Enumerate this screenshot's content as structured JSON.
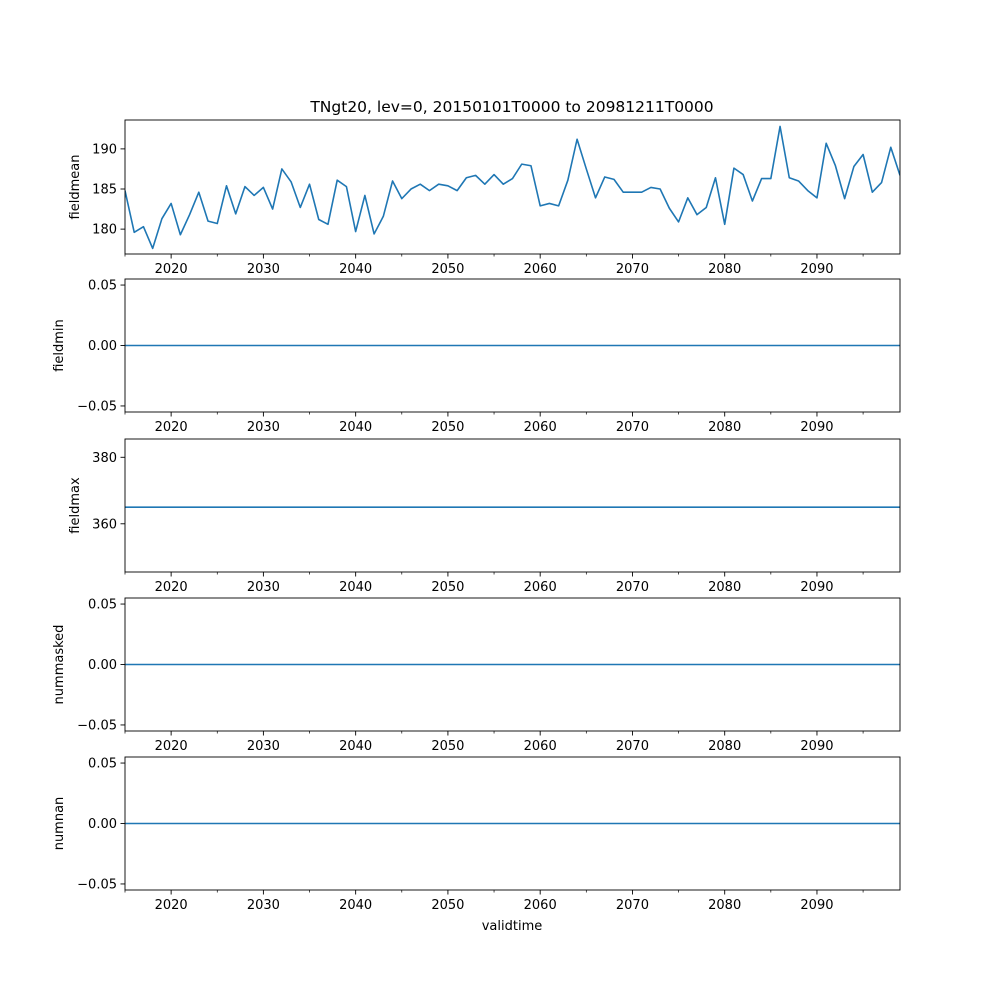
{
  "figure": {
    "title": "TNgt20, lev=0, 20150101T0000 to 20981211T0000",
    "xlabel": "validtime",
    "line_color": "#1f77b4"
  },
  "chart_data": [
    {
      "type": "line",
      "ylabel": "fieldmean",
      "xlim": [
        2015,
        2099
      ],
      "ylim": [
        176.9,
        193.6
      ],
      "xticks": [
        2020,
        2030,
        2040,
        2050,
        2060,
        2070,
        2080,
        2090
      ],
      "yticks": [
        180,
        185,
        190
      ],
      "ytick_labels": [
        "180",
        "185",
        "190"
      ],
      "x": [
        2015,
        2016,
        2017,
        2018,
        2019,
        2020,
        2021,
        2022,
        2023,
        2024,
        2025,
        2026,
        2027,
        2028,
        2029,
        2030,
        2031,
        2032,
        2033,
        2034,
        2035,
        2036,
        2037,
        2038,
        2039,
        2040,
        2041,
        2042,
        2043,
        2044,
        2045,
        2046,
        2047,
        2048,
        2049,
        2050,
        2051,
        2052,
        2053,
        2054,
        2055,
        2056,
        2057,
        2058,
        2059,
        2060,
        2061,
        2062,
        2063,
        2064,
        2065,
        2066,
        2067,
        2068,
        2069,
        2070,
        2071,
        2072,
        2073,
        2074,
        2075,
        2076,
        2077,
        2078,
        2079,
        2080,
        2081,
        2082,
        2083,
        2084,
        2085,
        2086,
        2087,
        2088,
        2089,
        2090,
        2091,
        2092,
        2093,
        2094,
        2095,
        2096,
        2097,
        2098,
        2099
      ],
      "values": [
        184.8,
        179.6,
        180.3,
        177.6,
        181.3,
        183.2,
        179.3,
        181.8,
        184.6,
        181.0,
        180.7,
        185.4,
        181.9,
        185.3,
        184.2,
        185.2,
        182.5,
        187.5,
        185.9,
        182.7,
        185.6,
        181.2,
        180.6,
        186.1,
        185.3,
        179.7,
        184.2,
        179.4,
        181.6,
        186.0,
        183.8,
        185.0,
        185.6,
        184.8,
        185.6,
        185.4,
        184.8,
        186.4,
        186.7,
        185.6,
        186.8,
        185.6,
        186.3,
        188.1,
        187.9,
        182.9,
        183.2,
        182.9,
        186.1,
        191.2,
        187.5,
        183.9,
        186.5,
        186.2,
        184.6,
        184.6,
        184.6,
        185.2,
        185.0,
        182.6,
        180.9,
        183.9,
        181.8,
        182.7,
        186.4,
        180.6,
        187.6,
        186.8,
        183.5,
        186.3,
        186.3,
        192.8,
        186.4,
        186.0,
        184.8,
        183.9,
        190.7,
        187.9,
        183.8,
        187.8,
        189.3,
        184.6,
        185.8,
        190.2,
        186.7
      ]
    },
    {
      "type": "line",
      "ylabel": "fieldmin",
      "xlim": [
        2015,
        2099
      ],
      "ylim": [
        -0.055,
        0.055
      ],
      "xticks": [
        2020,
        2030,
        2040,
        2050,
        2060,
        2070,
        2080,
        2090
      ],
      "yticks": [
        -0.05,
        0.0,
        0.05
      ],
      "ytick_labels": [
        "−0.05",
        "0.00",
        "0.05"
      ],
      "x": [
        2015,
        2099
      ],
      "values": [
        0.0,
        0.0
      ]
    },
    {
      "type": "line",
      "ylabel": "fieldmax",
      "xlim": [
        2015,
        2099
      ],
      "ylim": [
        345.5,
        385.5
      ],
      "xticks": [
        2020,
        2030,
        2040,
        2050,
        2060,
        2070,
        2080,
        2090
      ],
      "yticks": [
        360,
        380
      ],
      "ytick_labels": [
        "360",
        "380"
      ],
      "x": [
        2015,
        2099
      ],
      "values": [
        365.0,
        365.0
      ]
    },
    {
      "type": "line",
      "ylabel": "nummasked",
      "xlim": [
        2015,
        2099
      ],
      "ylim": [
        -0.055,
        0.055
      ],
      "xticks": [
        2020,
        2030,
        2040,
        2050,
        2060,
        2070,
        2080,
        2090
      ],
      "yticks": [
        -0.05,
        0.0,
        0.05
      ],
      "ytick_labels": [
        "−0.05",
        "0.00",
        "0.05"
      ],
      "x": [
        2015,
        2099
      ],
      "values": [
        0.0,
        0.0
      ]
    },
    {
      "type": "line",
      "ylabel": "numnan",
      "xlim": [
        2015,
        2099
      ],
      "ylim": [
        -0.055,
        0.055
      ],
      "xticks": [
        2020,
        2030,
        2040,
        2050,
        2060,
        2070,
        2080,
        2090
      ],
      "yticks": [
        -0.05,
        0.0,
        0.05
      ],
      "ytick_labels": [
        "−0.05",
        "0.00",
        "0.05"
      ],
      "x": [
        2015,
        2099
      ],
      "values": [
        0.0,
        0.0
      ]
    }
  ]
}
